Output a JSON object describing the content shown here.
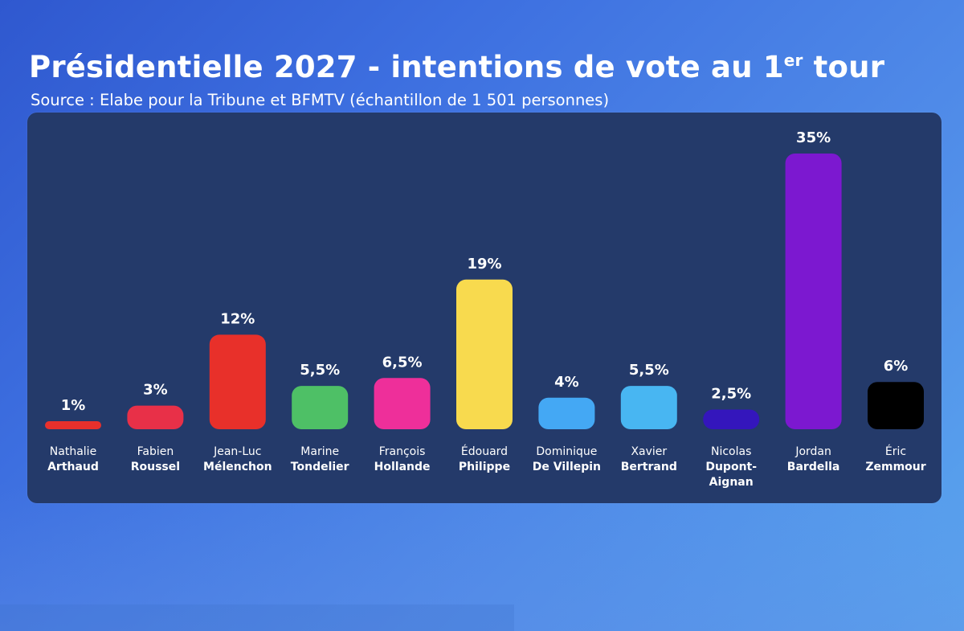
{
  "chart_data": {
    "type": "bar",
    "title_main": "Présidentielle 2027 - intentions de vote au 1",
    "title_sup": "er",
    "title_end": " tour",
    "subtitle": "Source : Elabe pour la Tribune et BFMTV (échantillon de 1 501 personnes)",
    "ylim": [
      0,
      35
    ],
    "unit": "%",
    "candidates": [
      {
        "first": "Nathalie",
        "last": [
          "Arthaud"
        ],
        "value": 1,
        "label": "1%",
        "color": "#e8302c"
      },
      {
        "first": "Fabien",
        "last": [
          "Roussel"
        ],
        "value": 3,
        "label": "3%",
        "color": "#e83048"
      },
      {
        "first": "Jean-Luc",
        "last": [
          "Mélenchon"
        ],
        "value": 12,
        "label": "12%",
        "color": "#e8302a"
      },
      {
        "first": "Marine",
        "last": [
          "Tondelier"
        ],
        "value": 5.5,
        "label": "5,5%",
        "color": "#4ec066"
      },
      {
        "first": "François",
        "last": [
          "Hollande"
        ],
        "value": 6.5,
        "label": "6,5%",
        "color": "#ee2f9a"
      },
      {
        "first": "Édouard",
        "last": [
          "Philippe"
        ],
        "value": 19,
        "label": "19%",
        "color": "#f8da4e"
      },
      {
        "first": "Dominique",
        "last": [
          "De Villepin"
        ],
        "value": 4,
        "label": "4%",
        "color": "#44a8f4"
      },
      {
        "first": "Xavier",
        "last": [
          "Bertrand"
        ],
        "value": 5.5,
        "label": "5,5%",
        "color": "#48b6f2"
      },
      {
        "first": "Nicolas",
        "last": [
          "Dupont-",
          "Aignan"
        ],
        "value": 2.5,
        "label": "2,5%",
        "color": "#3416bc"
      },
      {
        "first": "Jordan",
        "last": [
          "Bardella"
        ],
        "value": 35,
        "label": "35%",
        "color": "#7c18d0"
      },
      {
        "first": "Éric",
        "last": [
          "Zemmour"
        ],
        "value": 6,
        "label": "6%",
        "color": "#000000"
      }
    ]
  }
}
